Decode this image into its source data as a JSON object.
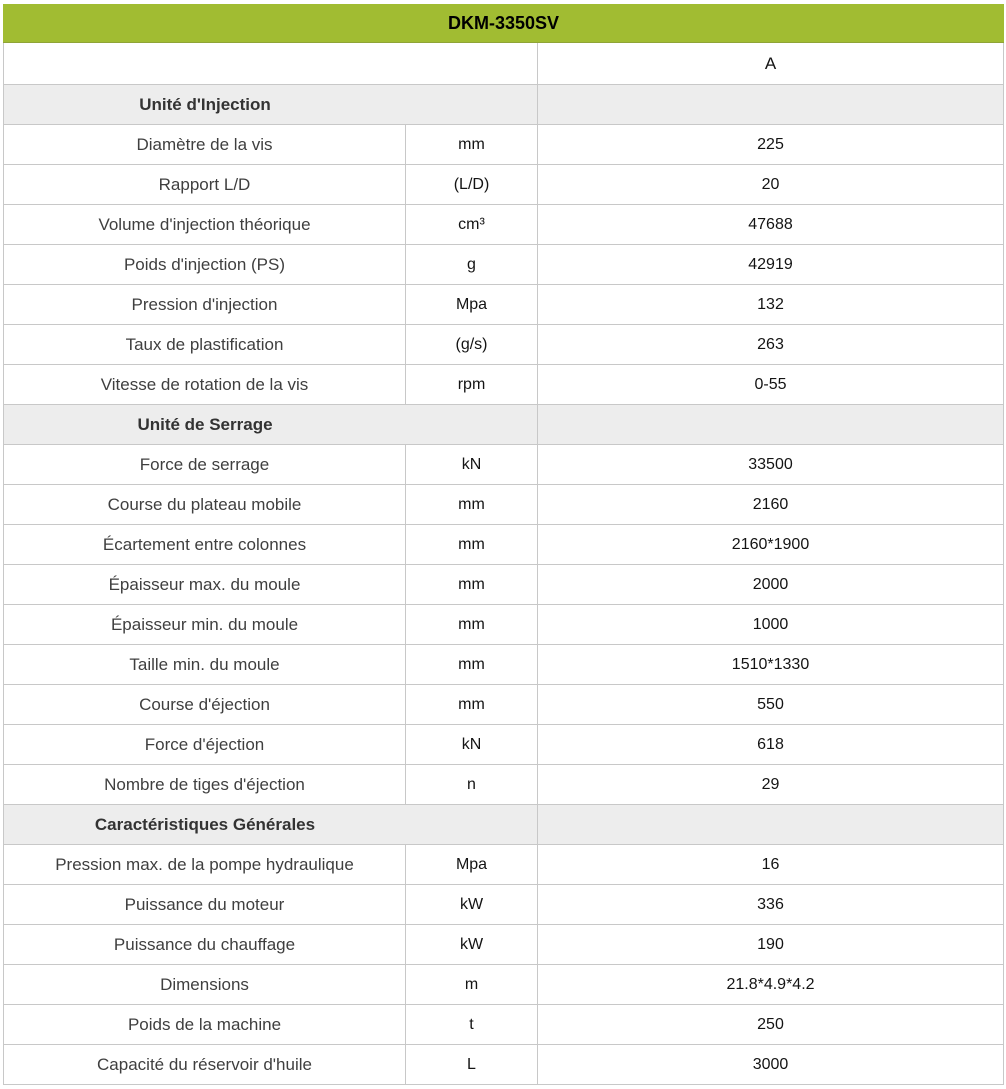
{
  "colors": {
    "header_green": "#a1bc32",
    "section_gray": "#ededed",
    "border_gray": "#c8c8c8"
  },
  "table": {
    "title": "DKM-3350SV",
    "model_column_header": "A",
    "sections": [
      {
        "label": "Unité d'Injection",
        "rows": [
          {
            "name": "Diamètre de la vis",
            "unit": "mm",
            "value": "225"
          },
          {
            "name": "Rapport L/D",
            "unit": "(L/D)",
            "value": "20"
          },
          {
            "name": "Volume d'injection théorique",
            "unit": "cm³",
            "value": "47688"
          },
          {
            "name": "Poids d'injection (PS)",
            "unit": "g",
            "value": "42919"
          },
          {
            "name": "Pression d'injection",
            "unit": "Mpa",
            "value": "132"
          },
          {
            "name": "Taux de plastification",
            "unit": "(g/s)",
            "value": "263"
          },
          {
            "name": "Vitesse de rotation de la vis",
            "unit": "rpm",
            "value": "0-55"
          }
        ]
      },
      {
        "label": "Unité de Serrage",
        "rows": [
          {
            "name": "Force de serrage",
            "unit": "kN",
            "value": "33500"
          },
          {
            "name": "Course du plateau mobile",
            "unit": "mm",
            "value": "2160"
          },
          {
            "name": "Écartement entre colonnes",
            "unit": "mm",
            "value": "2160*1900"
          },
          {
            "name": "Épaisseur max. du moule",
            "unit": "mm",
            "value": "2000"
          },
          {
            "name": "Épaisseur min. du moule",
            "unit": "mm",
            "value": "1000"
          },
          {
            "name": "Taille min. du moule",
            "unit": "mm",
            "value": "1510*1330"
          },
          {
            "name": "Course d'éjection",
            "unit": "mm",
            "value": "550"
          },
          {
            "name": "Force d'éjection",
            "unit": "kN",
            "value": "618"
          },
          {
            "name": "Nombre de tiges d'éjection",
            "unit": "n",
            "value": "29"
          }
        ]
      },
      {
        "label": "Caractéristiques Générales",
        "rows": [
          {
            "name": "Pression max. de la pompe hydraulique",
            "unit": "Mpa",
            "value": "16"
          },
          {
            "name": "Puissance du moteur",
            "unit": "kW",
            "value": "336"
          },
          {
            "name": "Puissance du chauffage",
            "unit": "kW",
            "value": "190"
          },
          {
            "name": "Dimensions",
            "unit": "m",
            "value": "21.8*4.9*4.2"
          },
          {
            "name": "Poids de la machine",
            "unit": "t",
            "value": "250"
          },
          {
            "name": "Capacité du réservoir d'huile",
            "unit": "L",
            "value": "3000"
          }
        ]
      }
    ]
  }
}
